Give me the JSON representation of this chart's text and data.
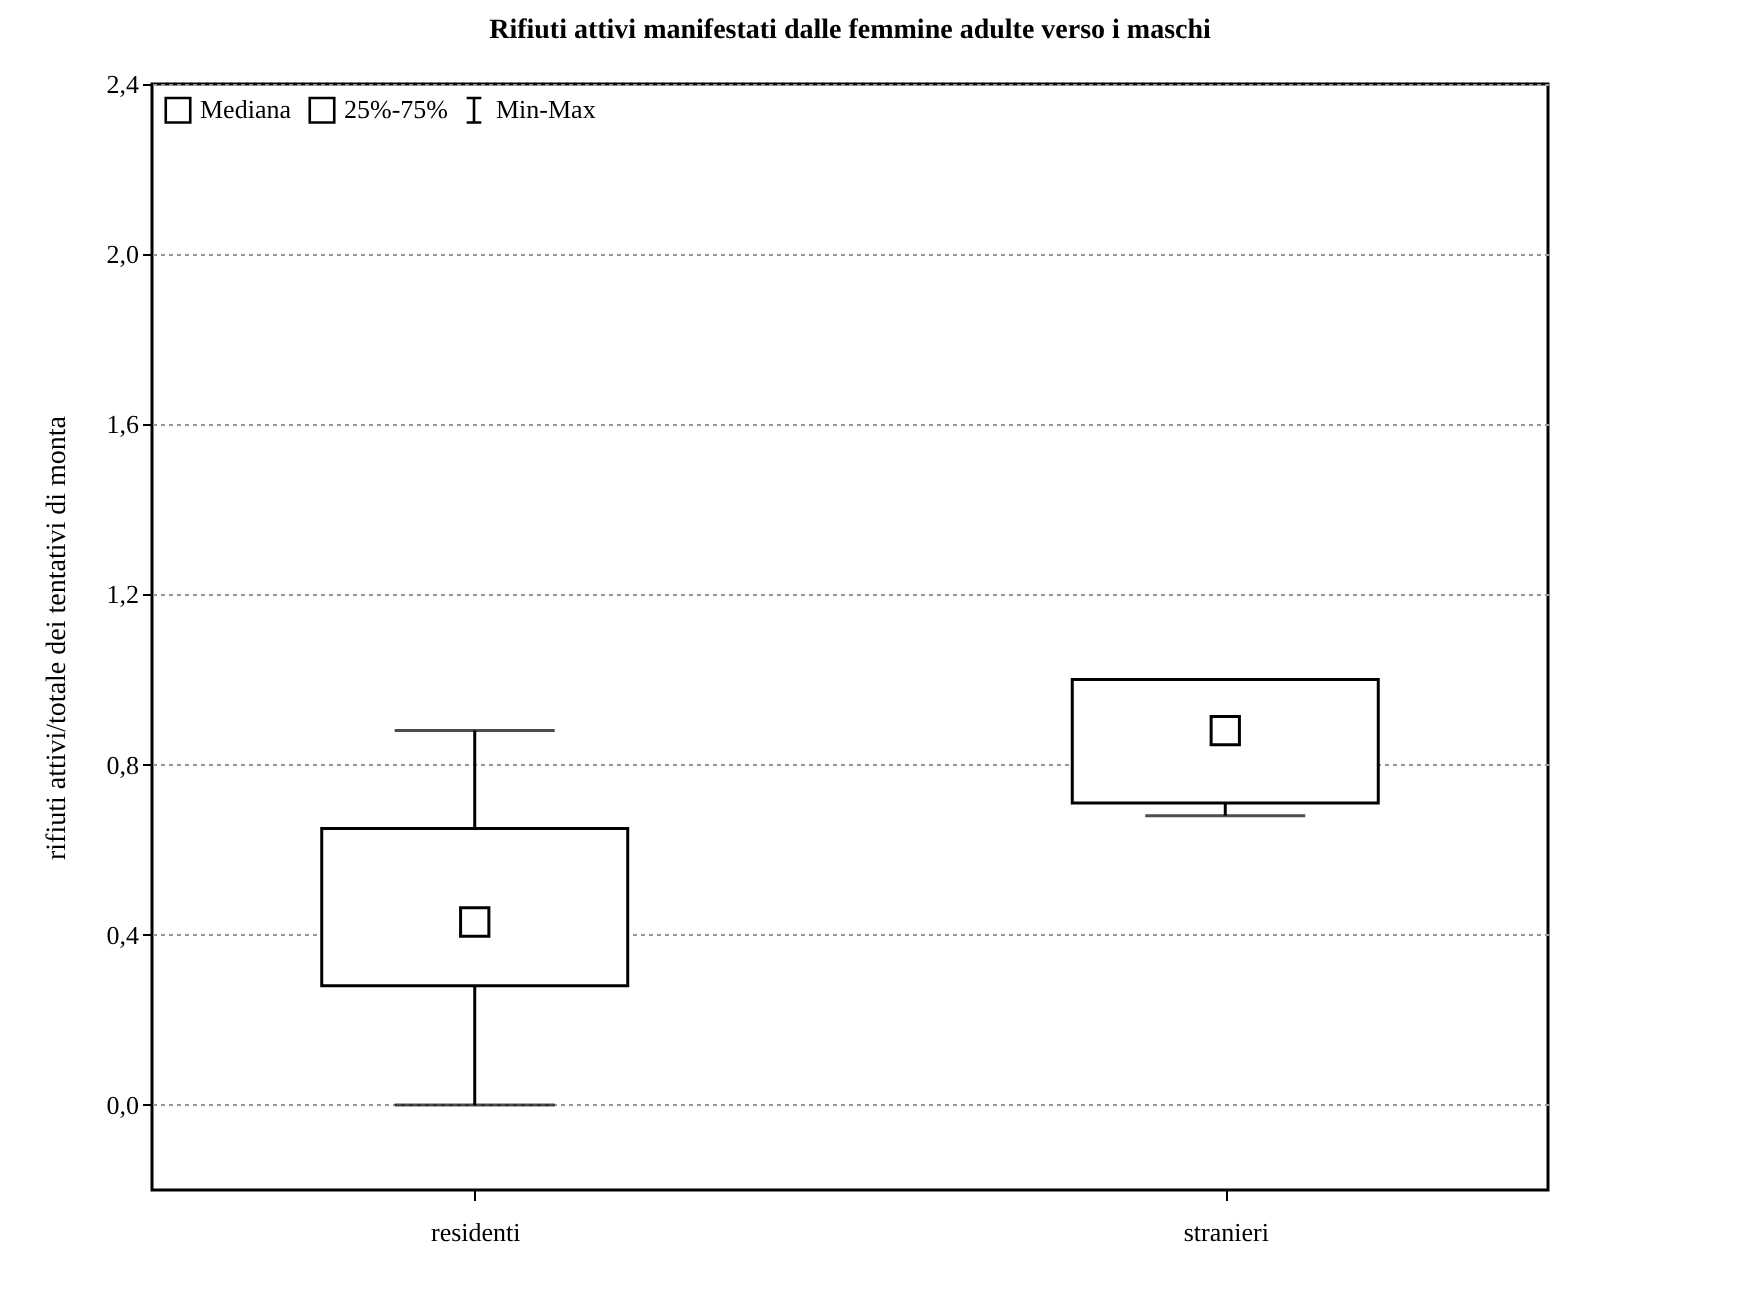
{
  "chart_data": {
    "type": "box",
    "title": "Rifiuti attivi manifestati dalle femmine adulte verso i maschi",
    "ylabel": "rifiuti attivi/totale dei tentativi di monta",
    "categories": [
      "residenti",
      "stranieri"
    ],
    "boxes": [
      {
        "low": 0,
        "q1": 0.28,
        "median": 0.43,
        "q3": 0.65,
        "high": 0.88
      },
      {
        "low": 0.68,
        "q1": 0.71,
        "median": 0.88,
        "q3": 1.0,
        "high": 1.0
      }
    ],
    "ylim": [
      -0.2,
      2.4
    ],
    "yticks": [
      {
        "value": 0,
        "label": "0,0"
      },
      {
        "value": 0.4,
        "label": "0,4"
      },
      {
        "value": 0.8,
        "label": "0,8"
      },
      {
        "value": 1.2,
        "label": "1,2"
      },
      {
        "value": 1.6,
        "label": "1,6"
      },
      {
        "value": 2.0,
        "label": "2,0"
      },
      {
        "value": 2.4,
        "label": "2,4"
      }
    ],
    "annotations": [
      "Mediana",
      "25%-75%",
      "Min-Max"
    ],
    "grid": "y"
  }
}
